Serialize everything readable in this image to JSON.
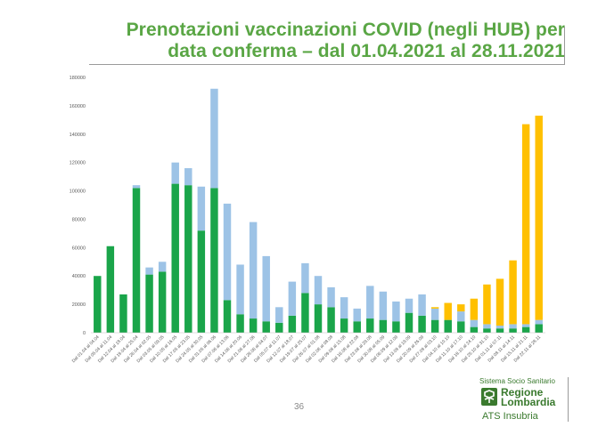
{
  "slide": {
    "title_line1": "Prenotazioni vaccinazioni COVID (negli HUB) per",
    "title_line2": "data conferma – dal 01.04.2021 al 28.11.2021",
    "page_number": "36",
    "logo": {
      "caption": "Sistema Socio Sanitario",
      "name": "Regione\nLombardia",
      "sub": "ATS Insubria",
      "color": "#3a7a2e"
    }
  },
  "chart_data": {
    "type": "bar",
    "stacked": true,
    "ylim": [
      0,
      180000
    ],
    "yticks": [
      0,
      20000,
      40000,
      60000,
      80000,
      100000,
      120000,
      140000,
      160000,
      180000
    ],
    "grid": false,
    "categories": [
      "Dal 01.04 al 04.04",
      "Dal 05.04 al 11.04",
      "Dal 12.04 al 18.04",
      "Dal 19.04 al 25.04",
      "Dal 26.04 al 02.05",
      "Dal 03.05 al 09.05",
      "Dal 10.05 al 16.05",
      "Dal 17.05 al 23.05",
      "Dal 24.05 al 30.05",
      "Dal 31.05 al 06.06",
      "Dal 07.06 al 13.06",
      "Dal 14.06 al 20.06",
      "Dal 21.06 al 27.06",
      "Dal 28.06 al 04.07",
      "Dal 05.07 al 11.07",
      "Dal 12.07 al 18.07",
      "Dal 19.07 al 25.07",
      "Dal 26.07 al 01.08",
      "Dal 02.08 al 08.08",
      "Dal 09.08 al 15.08",
      "Dal 16.08 al 22.08",
      "Dal 23.08 al 29.08",
      "Dal 30.08 al 05.09",
      "Dal 06.09 al 12.09",
      "Dal 13.09 al 19.09",
      "Dal 20.09 al 26.09",
      "Dal 27.09 al 03.10",
      "Dal 04.10 al 10.10",
      "Dal 11.10 al 17.10",
      "Dal 18.10 al 24.10",
      "Dal 25.10 al 31.10",
      "Dal 01.11 al 07.11",
      "Dal 08.11 al 14.11",
      "Dal 15.11 al 21.11",
      "Dal 22.11 al 28.11"
    ],
    "series": [
      {
        "color": "#1aa54a",
        "values": [
          40000,
          61000,
          27000,
          102000,
          41000,
          43000,
          105000,
          104000,
          72000,
          102000,
          23000,
          13000,
          10000,
          8000,
          7000,
          12000,
          28000,
          20000,
          18000,
          10000,
          8000,
          10000,
          9000,
          8000,
          14000,
          12000,
          9000,
          9000,
          8000,
          4000,
          3000,
          3000,
          3000,
          4000,
          6000
        ]
      },
      {
        "color": "#9dc3e6",
        "values": [
          0,
          0,
          0,
          2000,
          5000,
          7000,
          15000,
          12000,
          31000,
          70000,
          68000,
          35000,
          68000,
          46000,
          11000,
          24000,
          21000,
          20000,
          14000,
          15000,
          9000,
          23000,
          20000,
          14000,
          10000,
          15000,
          8000,
          0,
          7000,
          5000,
          3000,
          2000,
          3000,
          2000,
          3000
        ]
      },
      {
        "color": "#ffc000",
        "values": [
          0,
          0,
          0,
          0,
          0,
          0,
          0,
          0,
          0,
          0,
          0,
          0,
          0,
          0,
          0,
          0,
          0,
          0,
          0,
          0,
          0,
          0,
          0,
          0,
          0,
          0,
          1000,
          12000,
          5000,
          15000,
          28000,
          33000,
          45000,
          141000,
          144000
        ]
      }
    ]
  }
}
